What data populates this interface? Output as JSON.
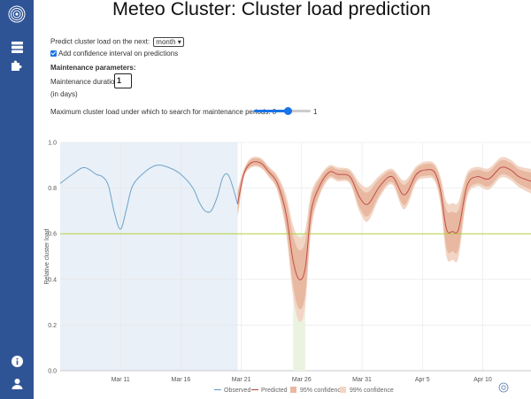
{
  "sidebar": {
    "icons": [
      "logo-icon",
      "database-icon",
      "puzzle-icon",
      "info-icon",
      "user-icon"
    ]
  },
  "header": {
    "title": "Meteo Cluster: Cluster load prediction"
  },
  "controls": {
    "predict_label": "Predict cluster load on the next:",
    "predict_value": "month",
    "confidence_label": "Add confidence interval on predictions",
    "confidence_checked": true,
    "maintenance_heading": "Maintenance parameters:",
    "duration_label": "Maintenance duration:",
    "duration_value": "1",
    "duration_unit": "(in days)",
    "max_load_label": "Maximum cluster load under which to search for maintenance periods: 0",
    "max_load_max": "1",
    "slider_value": 0.6
  },
  "chart_data": {
    "type": "line",
    "ylabel": "Relative cluster load",
    "ylim": [
      0,
      1.0
    ],
    "yticks": [
      "0.0",
      "0.2",
      "0.4",
      "0.6",
      "0.8",
      "1.0"
    ],
    "xticks": [
      "Mar 11",
      "Mar 16",
      "Mar 21",
      "Mar 26",
      "Mar 31",
      "Apr 5",
      "Apr 10"
    ],
    "xtick_days": [
      11,
      16,
      21,
      26,
      31,
      36,
      41
    ],
    "xlim_days": [
      6,
      45
    ],
    "threshold": 0.6,
    "observed_region_days": [
      6,
      20.7
    ],
    "maintenance_window_days": [
      25.3,
      26.3
    ],
    "legend": [
      "Observed",
      "Predicted",
      "95% confidence",
      "99% confidence"
    ],
    "series": [
      {
        "name": "Observed",
        "color": "#6fa3c7",
        "x": [
          6,
          7,
          8,
          9,
          9.5,
          10,
          10.5,
          11,
          11.5,
          12,
          13,
          14,
          15,
          16,
          17,
          17.5,
          18,
          18.5,
          19,
          19.5,
          20,
          20.7
        ],
        "y": [
          0.82,
          0.86,
          0.89,
          0.86,
          0.85,
          0.81,
          0.69,
          0.62,
          0.71,
          0.81,
          0.87,
          0.9,
          0.89,
          0.86,
          0.8,
          0.74,
          0.7,
          0.7,
          0.76,
          0.85,
          0.85,
          0.73
        ]
      },
      {
        "name": "Predicted",
        "color": "#c0504d",
        "x": [
          20.7,
          21.2,
          21.8,
          22.6,
          23.3,
          24,
          24.7,
          25.3,
          25.8,
          26.3,
          26.8,
          27.5,
          28.3,
          29,
          30,
          30.8,
          31.5,
          32.5,
          33.5,
          34.5,
          35.5,
          36.3,
          37,
          37.5,
          38,
          38.5,
          39,
          39.7,
          40.5,
          41.5,
          42.5,
          43.3,
          44,
          45
        ],
        "y": [
          0.73,
          0.86,
          0.91,
          0.91,
          0.87,
          0.82,
          0.69,
          0.48,
          0.4,
          0.45,
          0.7,
          0.81,
          0.87,
          0.86,
          0.85,
          0.76,
          0.73,
          0.81,
          0.85,
          0.77,
          0.86,
          0.88,
          0.87,
          0.79,
          0.62,
          0.61,
          0.62,
          0.81,
          0.85,
          0.84,
          0.89,
          0.88,
          0.85,
          0.83
        ]
      }
    ]
  }
}
